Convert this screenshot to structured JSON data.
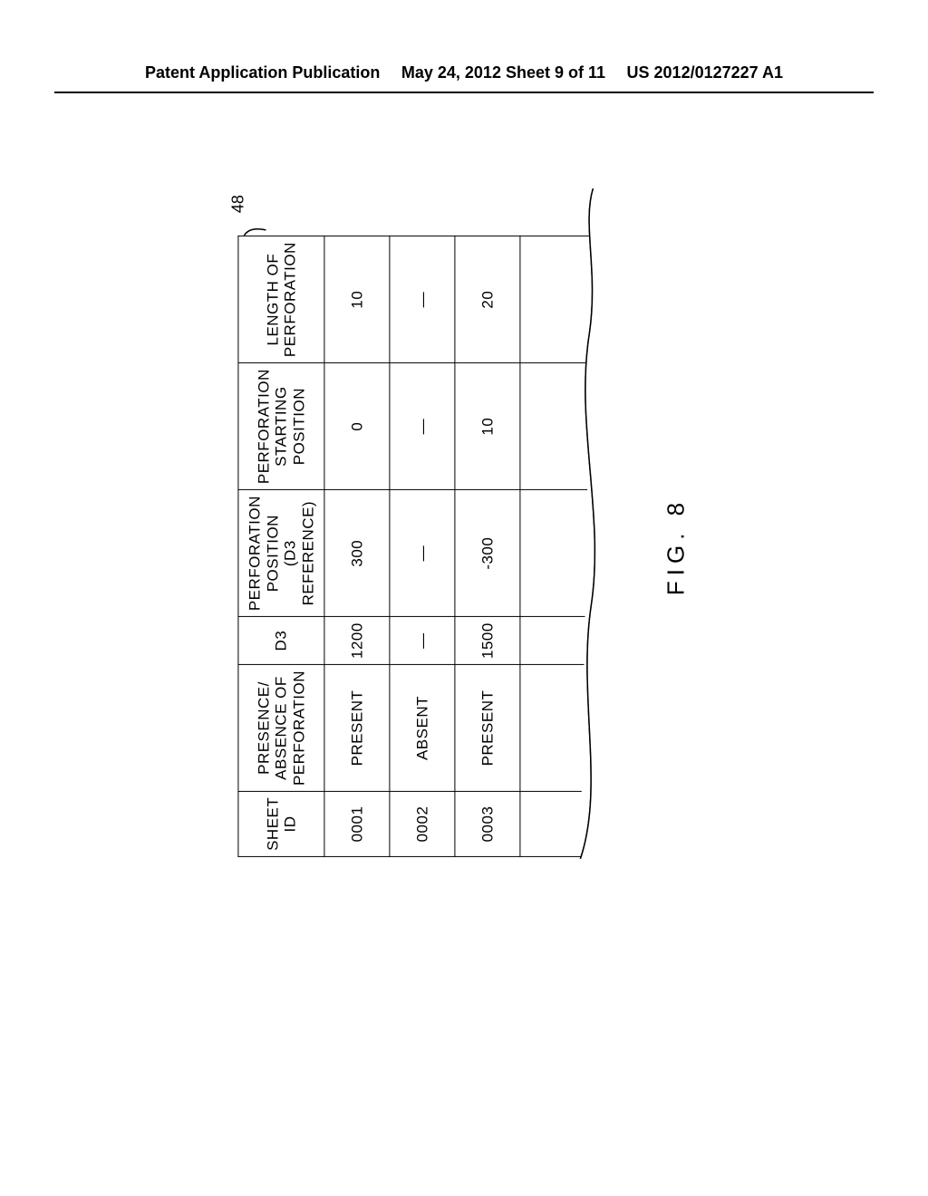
{
  "header": {
    "left": "Patent Application Publication",
    "center": "May 24, 2012  Sheet 9 of 11",
    "right": "US 2012/0127227 A1"
  },
  "figure": {
    "ref_number": "48",
    "caption": "FIG. 8",
    "table": {
      "columns": [
        "SHEET ID",
        "PRESENCE/\nABSENCE OF\nPERFORATION",
        "D3",
        "PERFORATION\nPOSITION\n(D3 REFERENCE)",
        "PERFORATION\nSTARTING\nPOSITION",
        "LENGTH OF\nPERFORATION"
      ],
      "rows": [
        [
          "0001",
          "PRESENT",
          "1200",
          "300",
          "0",
          "10"
        ],
        [
          "0002",
          "ABSENT",
          "—",
          "—",
          "—",
          "—"
        ],
        [
          "0003",
          "PRESENT",
          "1500",
          "-300",
          "10",
          "20"
        ]
      ]
    }
  }
}
